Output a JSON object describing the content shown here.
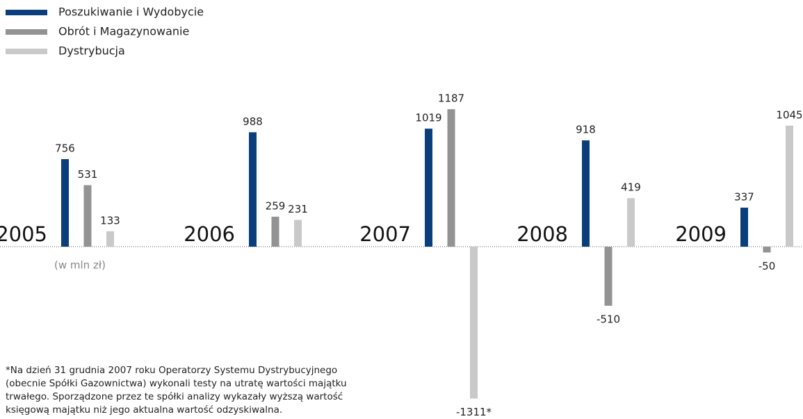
{
  "chart_data": {
    "type": "bar",
    "categories": [
      "2005",
      "2006",
      "2007",
      "2008",
      "2009"
    ],
    "unit_label": "(w mln zł)",
    "series": [
      {
        "name": "Poszukiwanie i Wydobycie",
        "color": "#0a3f7c",
        "values": [
          756,
          988,
          1019,
          918,
          337
        ]
      },
      {
        "name": "Obrót i Magazynowanie",
        "color": "#939393",
        "values": [
          531,
          259,
          1187,
          -510,
          -50
        ]
      },
      {
        "name": "Dystrybucja",
        "color": "#c9c9c9",
        "values": [
          133,
          231,
          -1311,
          419,
          1045
        ],
        "value_labels": [
          "133",
          "231",
          "-1311*",
          "419",
          "1045"
        ]
      }
    ],
    "footnote": [
      "*Na dzień 31 grudnia 2007 roku Operatorzy Systemu Dystrybucyjnego",
      " (obecnie Spółki Gazownictwa) wykonali testy na utratę wartości majątku",
      "trwałego. Sporządzone przez te spółki analizy wykazały wyższą wartość",
      "księgową majątku niż jego aktualna wartość odzyskiwalna."
    ]
  }
}
